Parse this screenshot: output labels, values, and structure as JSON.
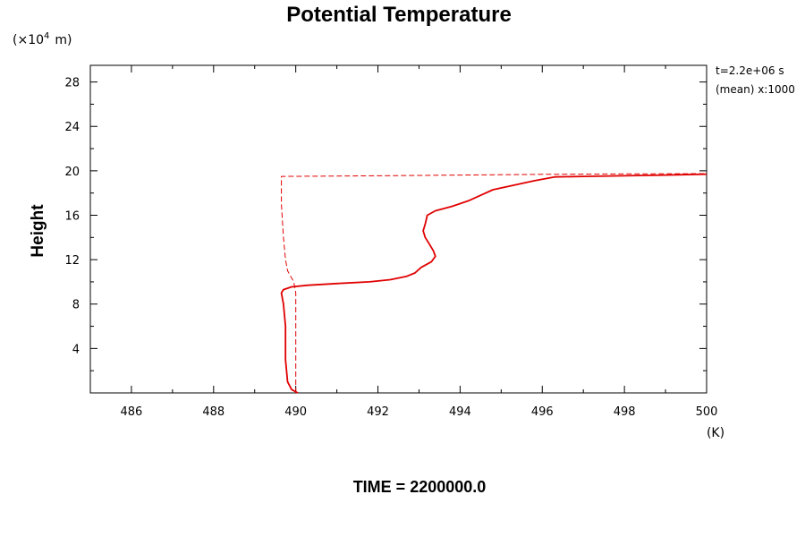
{
  "chart_data": {
    "type": "line",
    "title": "Potential Temperature",
    "ylabel": "Height",
    "y_scale_label": "(×10",
    "y_scale_exp": "4",
    "y_scale_unit": "m)",
    "x_unit_label": "(K)",
    "xlim": [
      485,
      500
    ],
    "ylim": [
      0,
      29.5
    ],
    "x_ticks": [
      486,
      488,
      490,
      492,
      494,
      496,
      498,
      500
    ],
    "x_tick_labels": [
      "486",
      "488",
      "490",
      "492",
      "494",
      "496",
      "498",
      "500"
    ],
    "y_ticks": [
      4,
      8,
      12,
      16,
      20,
      24,
      28
    ],
    "y_tick_labels": [
      "4",
      "8",
      "12",
      "16",
      "20",
      "24",
      "28"
    ],
    "annotations": [
      "t=2.2e+06 s",
      "(mean) x:1000"
    ],
    "grid": false,
    "series": [
      {
        "style": "solid",
        "color": "#e00000",
        "points": [
          [
            490.05,
            0.0
          ],
          [
            489.9,
            0.3
          ],
          [
            489.8,
            1.0
          ],
          [
            489.75,
            3.0
          ],
          [
            489.75,
            6.0
          ],
          [
            489.7,
            8.0
          ],
          [
            489.65,
            9.0
          ],
          [
            489.7,
            9.3
          ],
          [
            489.9,
            9.55
          ],
          [
            490.3,
            9.7
          ],
          [
            491.0,
            9.85
          ],
          [
            491.8,
            10.0
          ],
          [
            492.3,
            10.2
          ],
          [
            492.7,
            10.5
          ],
          [
            492.9,
            10.8
          ],
          [
            493.05,
            11.3
          ],
          [
            493.3,
            11.8
          ],
          [
            493.4,
            12.3
          ],
          [
            493.35,
            12.8
          ],
          [
            493.25,
            13.4
          ],
          [
            493.15,
            14.0
          ],
          [
            493.1,
            14.6
          ],
          [
            493.15,
            15.2
          ],
          [
            493.2,
            16.0
          ],
          [
            493.4,
            16.4
          ],
          [
            493.8,
            16.8
          ],
          [
            494.2,
            17.3
          ],
          [
            494.5,
            17.8
          ],
          [
            494.8,
            18.3
          ],
          [
            495.3,
            18.7
          ],
          [
            495.8,
            19.1
          ],
          [
            496.3,
            19.45
          ],
          [
            497.0,
            19.5
          ],
          [
            498.0,
            19.55
          ],
          [
            499.0,
            19.62
          ],
          [
            500.0,
            19.7
          ]
        ]
      },
      {
        "style": "dashed",
        "color": "#e00000",
        "points": [
          [
            490.0,
            0.0
          ],
          [
            490.0,
            9.0
          ],
          [
            489.95,
            10.0
          ],
          [
            489.8,
            11.0
          ],
          [
            489.75,
            12.0
          ],
          [
            489.7,
            14.0
          ],
          [
            489.65,
            17.0
          ],
          [
            489.65,
            19.5
          ],
          [
            492.0,
            19.55
          ],
          [
            494.0,
            19.62
          ],
          [
            496.0,
            19.68
          ],
          [
            498.0,
            19.72
          ],
          [
            500.0,
            19.75
          ]
        ]
      }
    ]
  },
  "footer": {
    "time_label": "TIME = 2200000.0"
  }
}
